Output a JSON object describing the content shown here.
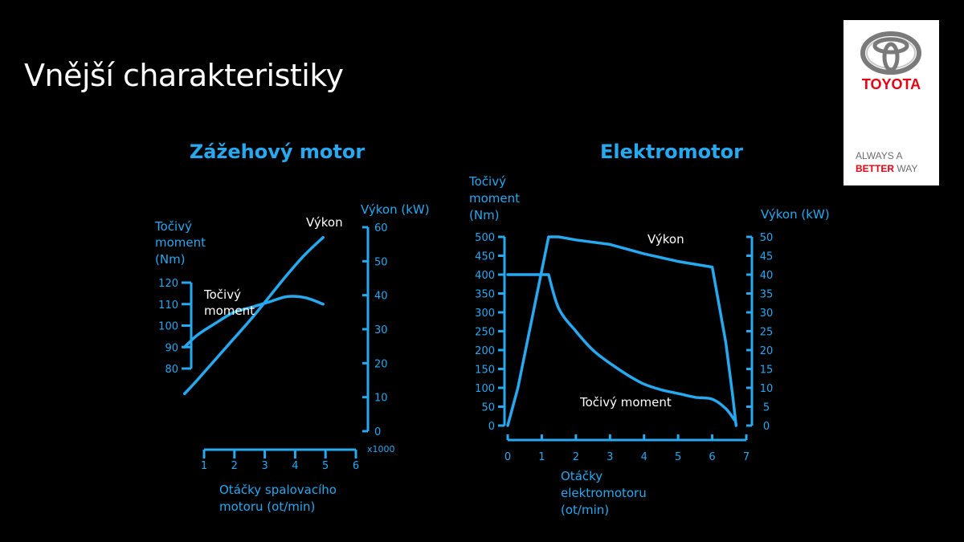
{
  "slide": {
    "title": "Vnější charakteristiky"
  },
  "logo": {
    "brand": "TOYOTA",
    "tagline_line1": "ALWAYS A",
    "tagline_better": "BETTER",
    "tagline_way": "WAY"
  },
  "colors": {
    "background": "#000000",
    "accent": "#27a9f0",
    "text": "#ffffff",
    "brand_red": "#e50012"
  },
  "chart_data": [
    {
      "type": "line",
      "title": "Zážehový motor",
      "xlabel": "Otáčky spalovacího motoru (ot/min)",
      "x_unit": "x1000",
      "xlim": [
        1,
        6
      ],
      "x_ticks": [
        "1",
        "2",
        "3",
        "4",
        "5",
        "6"
      ],
      "ylabel_left": [
        "Točivý",
        "moment",
        "(Nm)"
      ],
      "ylim_left": [
        80,
        120
      ],
      "y_ticks_left": [
        "120",
        "110",
        "100",
        "90",
        "80"
      ],
      "ylabel_right": "Výkon (kW)",
      "ylim_right": [
        0,
        60
      ],
      "y_ticks_right": [
        "60",
        "50",
        "40",
        "30",
        "20",
        "10",
        "0"
      ],
      "series": [
        {
          "name": "Točivý moment",
          "label_lines": [
            "Točivý",
            "moment"
          ],
          "axis": "left",
          "x": [
            1.15,
            1.5,
            2,
            2.5,
            3,
            3.5,
            4,
            4.5,
            5
          ],
          "y": [
            90,
            95.5,
            101,
            106,
            108.5,
            111,
            113.5,
            113,
            110
          ]
        },
        {
          "name": "Výkon",
          "label_lines": [
            "Výkon"
          ],
          "axis": "right",
          "x": [
            1.15,
            1.5,
            2,
            2.5,
            3,
            3.5,
            4,
            4.5,
            5
          ],
          "y": [
            11,
            15,
            21,
            27,
            33,
            39.5,
            46,
            52,
            57
          ]
        }
      ]
    },
    {
      "type": "line",
      "title": "Elektromotor",
      "xlabel": "Otáčky elektromotoru (ot/min)",
      "xlim": [
        0,
        7
      ],
      "x_ticks": [
        "0",
        "1",
        "2",
        "3",
        "4",
        "5",
        "6",
        "7"
      ],
      "ylabel_left": [
        "Točivý",
        "moment",
        "(Nm)"
      ],
      "ylim_left": [
        0,
        500
      ],
      "y_ticks_left": [
        "500",
        "450",
        "400",
        "350",
        "300",
        "250",
        "200",
        "150",
        "100",
        "50",
        "0"
      ],
      "ylabel_right": "Výkon (kW)",
      "ylim_right": [
        0,
        50
      ],
      "y_ticks_right": [
        "50",
        "45",
        "40",
        "35",
        "30",
        "25",
        "20",
        "15",
        "10",
        "5",
        "0"
      ],
      "series": [
        {
          "name": "Točivý moment",
          "label_lines": [
            "Točivý moment"
          ],
          "axis": "left",
          "x": [
            0,
            1.2,
            1.5,
            2,
            2.5,
            3,
            3.5,
            4,
            4.5,
            5,
            5.5,
            6,
            6.4,
            6.65
          ],
          "y": [
            400,
            400,
            310,
            250,
            200,
            165,
            135,
            110,
            95,
            85,
            75,
            70,
            45,
            15
          ]
        },
        {
          "name": "Výkon",
          "label_lines": [
            "Výkon"
          ],
          "axis": "right",
          "x": [
            0,
            0.3,
            1.2,
            1.5,
            2,
            3,
            4,
            5,
            6,
            6.4,
            6.6,
            6.7
          ],
          "y": [
            0,
            10,
            50,
            50,
            49.2,
            48,
            45.5,
            43.5,
            42,
            22,
            8,
            0
          ]
        }
      ]
    }
  ]
}
